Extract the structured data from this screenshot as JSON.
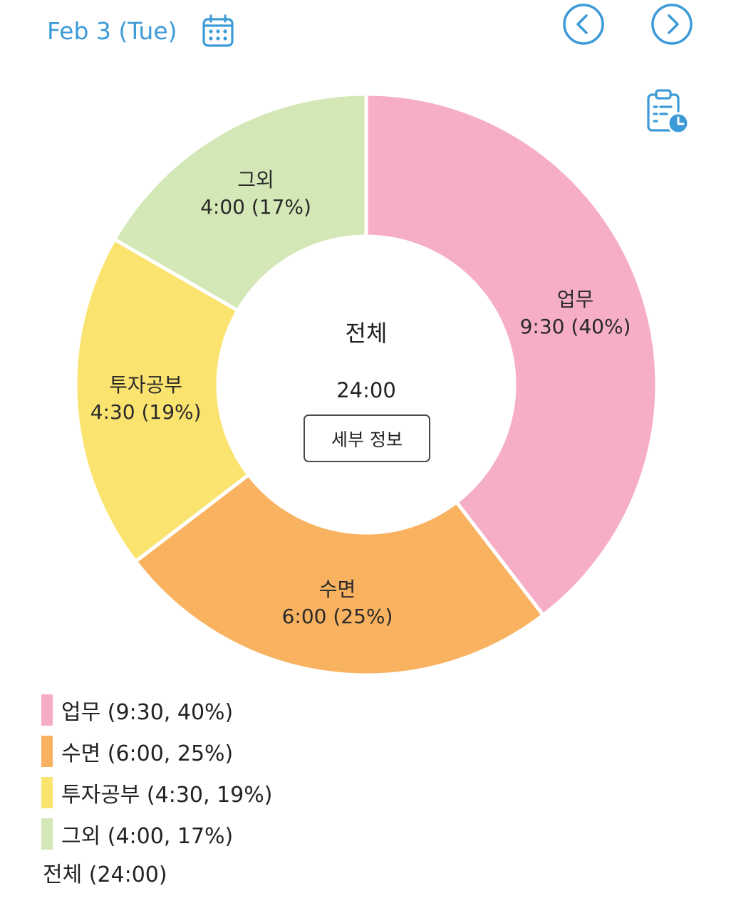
{
  "header": {
    "date": "Feb 3 (Tue)",
    "accent_color": "#3d9ad8"
  },
  "icons": {
    "calendar": "calendar-icon",
    "prev": "chevron-left-icon",
    "next": "chevron-right-icon",
    "schedule": "clipboard-clock-icon"
  },
  "center": {
    "title": "전체",
    "total": "24:00",
    "detail_button": "세부 정보"
  },
  "chart_data": {
    "type": "pie",
    "categories": [
      "업무",
      "수면",
      "투자공부",
      "그외"
    ],
    "values": [
      9.5,
      6.0,
      4.5,
      4.0
    ],
    "percentages": [
      40,
      25,
      19,
      17
    ],
    "colors": [
      "#f6adc6",
      "#f8b260",
      "#fbe36f",
      "#d3e8b6"
    ],
    "slice_labels": [
      {
        "name": "업무",
        "value": "9:30 (40%)"
      },
      {
        "name": "수면",
        "value": "6:00 (25%)"
      },
      {
        "name": "투자공부",
        "value": "4:30 (19%)"
      },
      {
        "name": "그외",
        "value": "4:00 (17%)"
      }
    ],
    "legend": [
      "업무 (9:30, 40%)",
      "수면 (6:00, 25%)",
      "투자공부 (4:30, 19%)",
      "그외 (4:00, 17%)"
    ],
    "legend_total": "전체 (24:00)",
    "legend_position": "bottom-left",
    "start": "top",
    "direction": "clockwise"
  }
}
